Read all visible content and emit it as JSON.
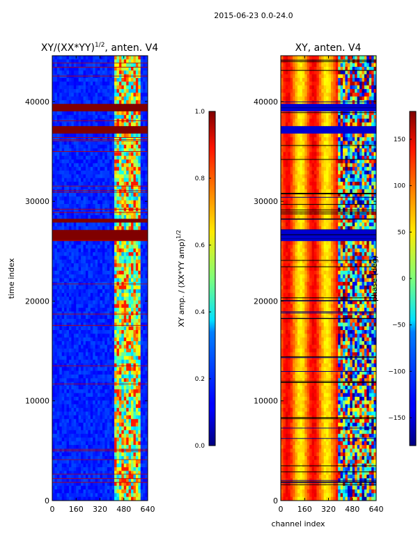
{
  "figure": {
    "suptitle": "2015-06-23 0.0-24.0"
  },
  "chart_data": [
    {
      "type": "heatmap",
      "title_main": "XY/(XX*YY)",
      "title_sup": "1/2",
      "title_tail": ", anten. V4",
      "xlabel": "",
      "ylabel": "time index",
      "xlim": [
        0,
        640
      ],
      "ylim": [
        0,
        44600
      ],
      "xticks": [
        0,
        160,
        320,
        480,
        640
      ],
      "yticks": [
        0,
        10000,
        20000,
        30000,
        40000
      ],
      "colorbar": {
        "label_main": "XY amp. / (XX*YY amp)",
        "label_sup": "1/2",
        "range": [
          0.0,
          1.0
        ],
        "ticks": [
          "0.0",
          "0.2",
          "0.4",
          "0.6",
          "0.8",
          "1.0"
        ]
      },
      "saturated_rows": [
        [
          26200,
          27200
        ],
        [
          36800,
          37400
        ],
        [
          39100,
          39600
        ],
        [
          28000,
          28300
        ],
        [
          30300,
          30500
        ]
      ],
      "colormap": "jet"
    },
    {
      "type": "heatmap",
      "title_main": "XY, anten. V4",
      "xlabel": "channel index",
      "ylabel": "",
      "xlim": [
        0,
        640
      ],
      "ylim": [
        0,
        44600
      ],
      "xticks": [
        0,
        160,
        320,
        480,
        640
      ],
      "yticks": [
        0,
        10000,
        20000,
        30000,
        40000
      ],
      "colorbar": {
        "label": "phase (deg)",
        "range": [
          -180,
          180
        ],
        "ticks": [
          "−150",
          "−100",
          "−50",
          "0",
          "50",
          "100",
          "150"
        ]
      },
      "colormap": "jet"
    }
  ]
}
